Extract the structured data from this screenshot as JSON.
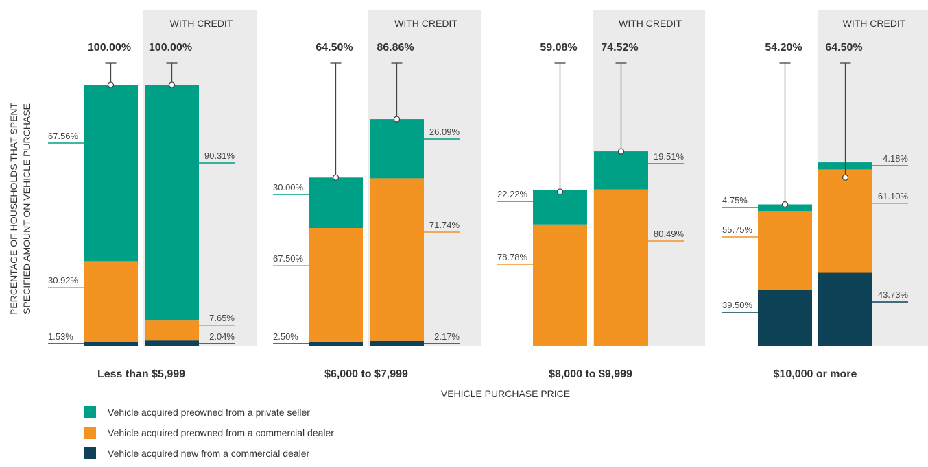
{
  "chart_data": {
    "type": "bar",
    "stacked": true,
    "ylabel_lines": [
      "PERCENTAGE OF HOUSEHOLDS THAT SPENT",
      "SPECIFIED AMOUNT ON VEHICLE PURCHASE"
    ],
    "xlabel": "VEHICLE PURCHASE PRICE",
    "panel_header": "WITH CREDIT",
    "ylim": [
      0,
      100
    ],
    "series": [
      {
        "key": "new",
        "name": "Vehicle acquired new from a commercial dealer",
        "color": "#0d4257"
      },
      {
        "key": "dealer",
        "name": "Vehicle acquired preowned from a commercial dealer",
        "color": "#f39322"
      },
      {
        "key": "private",
        "name": "Vehicle acquired preowned from a private seller",
        "color": "#00a086"
      }
    ],
    "groups": [
      {
        "category": "Less than $5,999",
        "bars": [
          {
            "credit": false,
            "total": 100,
            "total_label": "100.00%",
            "segments": {
              "new": 1.53,
              "dealer": 30.92,
              "private": 67.56
            },
            "labels": {
              "new": "1.53%",
              "dealer": "30.92%",
              "private": "67.56%"
            }
          },
          {
            "credit": true,
            "total": 100,
            "total_label": "100.00%",
            "segments": {
              "new": 2.04,
              "dealer": 7.65,
              "private": 90.31
            },
            "labels": {
              "new": "2.04%",
              "dealer": "7.65%",
              "private": "90.31%"
            }
          }
        ]
      },
      {
        "category": "$6,000 to $7,999",
        "bars": [
          {
            "credit": false,
            "total": 64.5,
            "total_label": "64.50%",
            "segments": {
              "new": 2.5,
              "dealer": 67.5,
              "private": 30.0
            },
            "labels": {
              "new": "2.50%",
              "dealer": "67.50%",
              "private": "30.00%"
            }
          },
          {
            "credit": true,
            "total": 86.86,
            "total_label": "86.86%",
            "segments": {
              "new": 2.17,
              "dealer": 71.74,
              "private": 26.09
            },
            "labels": {
              "new": "2.17%",
              "dealer": "71.74%",
              "private": "26.09%"
            }
          }
        ]
      },
      {
        "category": "$8,000 to $9,999",
        "bars": [
          {
            "credit": false,
            "total": 59.08,
            "total_label": "59.08%",
            "segments": {
              "new": 0,
              "dealer": 78.78,
              "private": 22.22
            },
            "labels": {
              "dealer": "78.78%",
              "private": "22.22%"
            }
          },
          {
            "credit": true,
            "total": 74.52,
            "total_label": "74.52%",
            "segments": {
              "new": 0,
              "dealer": 80.49,
              "private": 19.51
            },
            "labels": {
              "dealer": "80.49%",
              "private": "19.51%"
            }
          }
        ]
      },
      {
        "category": "$10,000 or more",
        "bars": [
          {
            "credit": false,
            "total": 54.2,
            "total_label": "54.20%",
            "segments": {
              "new": 39.5,
              "dealer": 55.75,
              "private": 4.75
            },
            "labels": {
              "new": "39.50%",
              "dealer": "55.75%",
              "private": "4.75%"
            }
          },
          {
            "credit": true,
            "total": 64.5,
            "total_label": "64.50%",
            "segments": {
              "new": 43.73,
              "dealer": 61.1,
              "private": 4.18
            },
            "labels": {
              "new": "43.73%",
              "dealer": "61.10%",
              "private": "4.18%"
            }
          }
        ]
      }
    ]
  }
}
